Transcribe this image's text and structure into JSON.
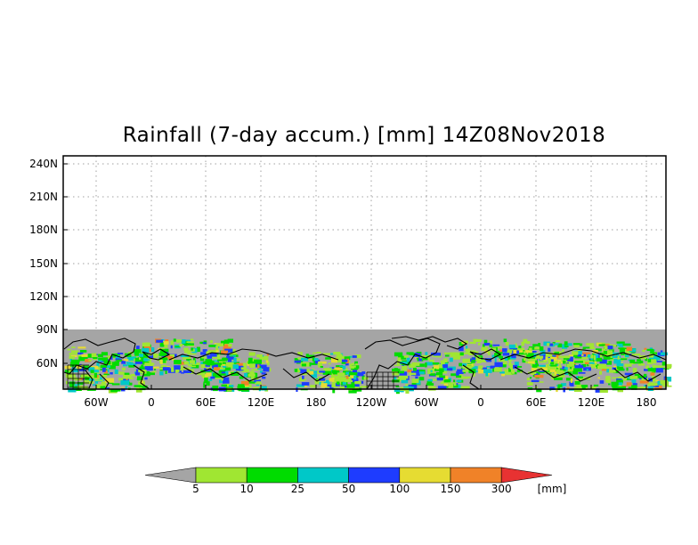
{
  "title": "Rainfall (7-day accum.) [mm] 14Z08Nov2018",
  "y_ticks": [
    "240N",
    "210N",
    "180N",
    "150N",
    "120N",
    "90N",
    "60N"
  ],
  "x_ticks": [
    "60W",
    "0",
    "60E",
    "120E",
    "180",
    "120W",
    "60W",
    "0",
    "60E",
    "120E",
    "180"
  ],
  "colorbar": {
    "unit": "[mm]",
    "under_color": "#a5a5a5",
    "over_color": "#e83232",
    "bins": [
      {
        "label": "5",
        "color": "#a0e632"
      },
      {
        "label": "10",
        "color": "#00dc00"
      },
      {
        "label": "25",
        "color": "#00c8c8"
      },
      {
        "label": "50",
        "color": "#1e3cff"
      },
      {
        "label": "100",
        "color": "#e6dc32"
      },
      {
        "label": "150",
        "color": "#f08228"
      },
      {
        "label": "300",
        "color": null
      }
    ]
  },
  "colors": {
    "no_data_band": "#a5a5a5",
    "grid": "#a0a0a0",
    "coastline": "#000000"
  }
}
